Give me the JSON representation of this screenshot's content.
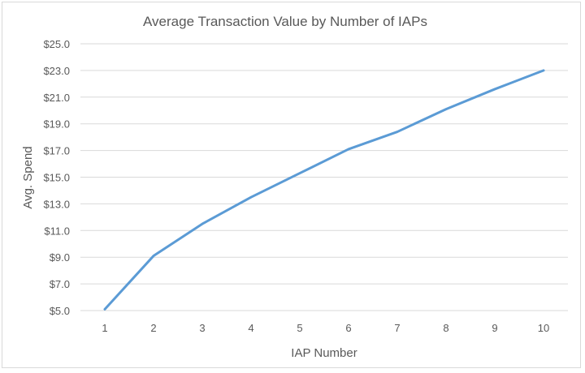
{
  "chart_data": {
    "type": "line",
    "title": "Average Transaction Value by Number of IAPs",
    "xlabel": "IAP Number",
    "ylabel": "Avg. Spend",
    "x": [
      1,
      2,
      3,
      4,
      5,
      6,
      7,
      8,
      9,
      10
    ],
    "series": [
      {
        "values": [
          5.1,
          9.1,
          11.5,
          13.5,
          15.3,
          17.1,
          18.4,
          20.1,
          21.6,
          23.0
        ]
      }
    ],
    "xticks": [
      "1",
      "2",
      "3",
      "4",
      "5",
      "6",
      "7",
      "8",
      "9",
      "10"
    ],
    "yticks": [
      "$5.0",
      "$7.0",
      "$9.0",
      "$11.0",
      "$13.0",
      "$15.0",
      "$17.0",
      "$19.0",
      "$21.0",
      "$23.0",
      "$25.0"
    ],
    "ytick_values": [
      5,
      7,
      9,
      11,
      13,
      15,
      17,
      19,
      21,
      23,
      25
    ],
    "ylim": [
      5,
      25
    ],
    "xlim": [
      0.5,
      10.5
    ],
    "grid": true,
    "legend": "none",
    "colors": {
      "series": "#5b9bd5",
      "grid": "#d9d9d9",
      "text": "#595959"
    }
  }
}
